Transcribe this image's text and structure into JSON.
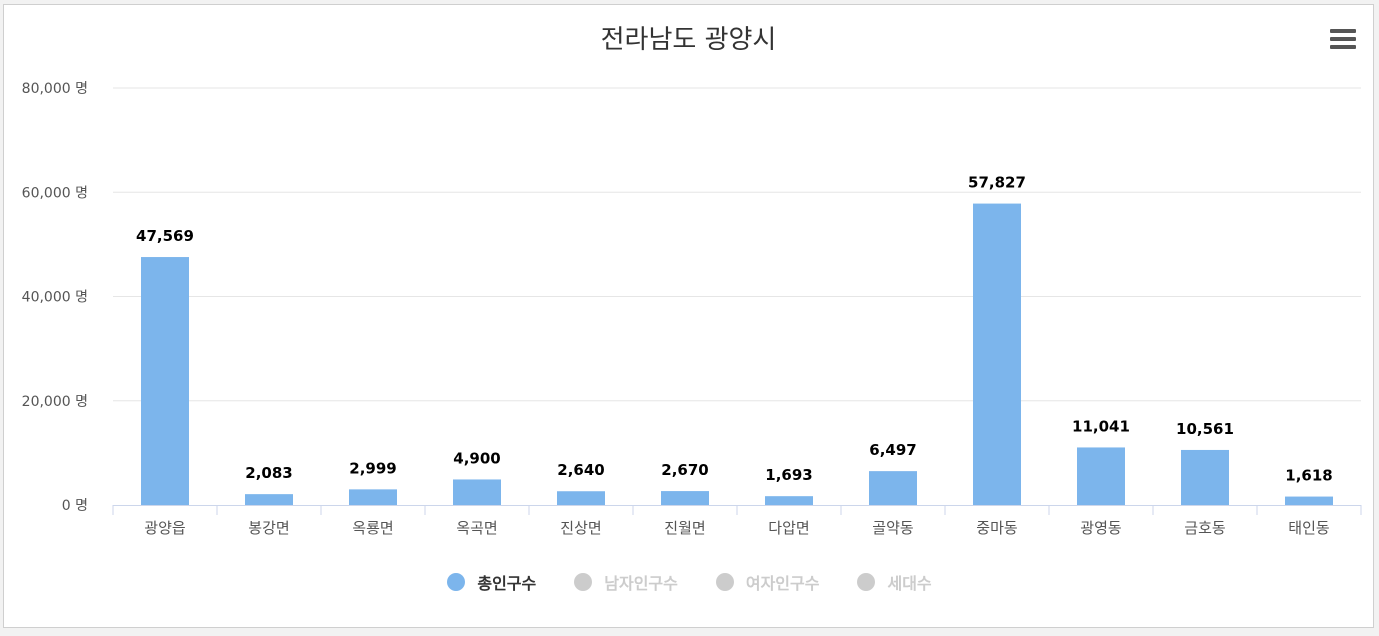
{
  "chart_data": {
    "type": "bar",
    "title": "전라남도 광양시",
    "categories": [
      "광양읍",
      "봉강면",
      "옥룡면",
      "옥곡면",
      "진상면",
      "진월면",
      "다압면",
      "골약동",
      "중마동",
      "광영동",
      "금호동",
      "태인동"
    ],
    "series": [
      {
        "name": "총인구수",
        "values": [
          47569,
          2083,
          2999,
          4900,
          2640,
          2670,
          1693,
          6497,
          57827,
          11041,
          10561,
          1618
        ],
        "visible": true
      }
    ],
    "data_labels": [
      "47,569",
      "2,083",
      "2,999",
      "4,900",
      "2,640",
      "2,670",
      "1,693",
      "6,497",
      "57,827",
      "11,041",
      "10,561",
      "1,618"
    ],
    "y_ticks": [
      0,
      20000,
      40000,
      60000,
      80000
    ],
    "y_tick_labels": [
      "0 명",
      "20,000 명",
      "40,000 명",
      "60,000 명",
      "80,000 명"
    ],
    "ylim": [
      0,
      80000
    ],
    "grid": true,
    "legend_position": "bottom-center",
    "bar_color": "#7cb5ec"
  },
  "legend": [
    {
      "label": "총인구수",
      "active": true,
      "color": "#7cb5ec"
    },
    {
      "label": "남자인구수",
      "active": false,
      "color": "#cccccc"
    },
    {
      "label": "여자인구수",
      "active": false,
      "color": "#cccccc"
    },
    {
      "label": "세대수",
      "active": false,
      "color": "#cccccc"
    }
  ],
  "menu_icon": "hamburger-menu-icon"
}
